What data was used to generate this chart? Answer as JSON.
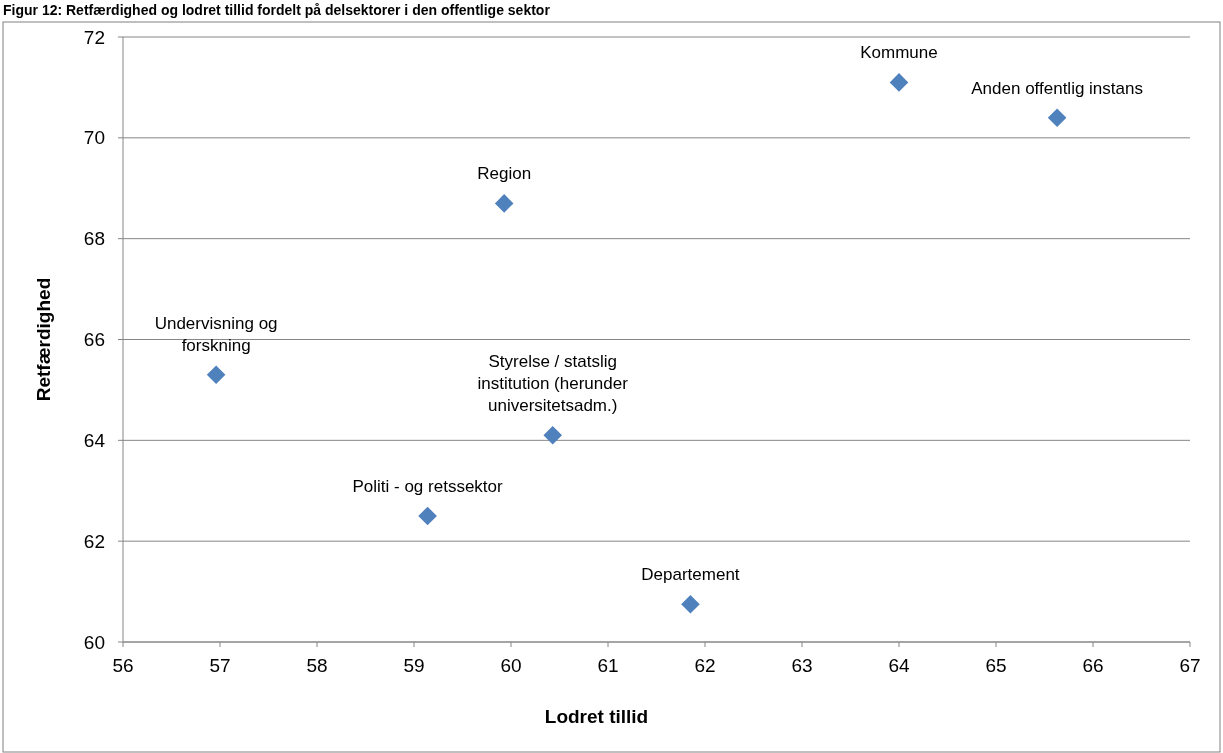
{
  "chart_data": {
    "type": "scatter",
    "title": "Figur 12: Retfærdighed og lodret tillid fordelt på delsektorer i den offentlige sektor",
    "xlabel": "Lodret tillid",
    "ylabel": "Retfærdighed",
    "x": [
      64.0,
      65.63,
      59.93,
      56.96,
      60.43,
      59.14,
      61.85
    ],
    "series": [
      {
        "color": "#4f81bd",
        "values": [
          71.1,
          70.4,
          68.7,
          65.3,
          64.1,
          62.5,
          60.75
        ]
      }
    ],
    "annotations": [
      {
        "text": "Kommune",
        "x": 64.0,
        "y": 71.1
      },
      {
        "text": "Anden offentlig instans",
        "x": 65.63,
        "y": 70.4
      },
      {
        "text": "Region",
        "x": 59.93,
        "y": 68.7
      },
      {
        "text": "Undervisning og\nforskning",
        "x": 56.96,
        "y": 65.3
      },
      {
        "text": "Styrelse / statslig\ninstitution (herunder\nuniversitetsadm.)",
        "x": 60.43,
        "y": 64.1
      },
      {
        "text": "Politi - og retssektor",
        "x": 59.14,
        "y": 62.5
      },
      {
        "text": "Departement",
        "x": 61.85,
        "y": 60.75
      }
    ],
    "xlim": [
      56,
      67
    ],
    "xticks": [
      56,
      57,
      58,
      59,
      60,
      61,
      62,
      63,
      64,
      65,
      66,
      67
    ],
    "ylim": [
      60,
      72
    ],
    "yticks": [
      60,
      62,
      64,
      66,
      68,
      70,
      72
    ],
    "grid": "y",
    "marker": "diamond"
  }
}
